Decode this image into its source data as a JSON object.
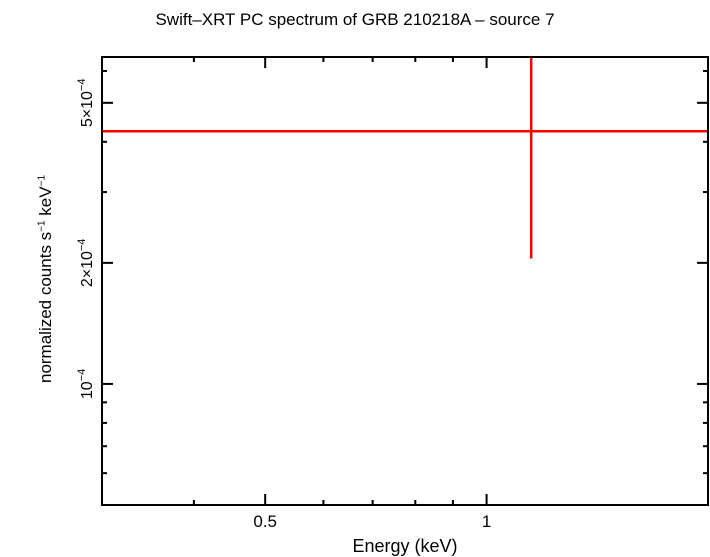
{
  "chart_data": {
    "type": "scatter",
    "title": "Swift–XRT PC spectrum of GRB 210218A – source 7",
    "xlabel": "Energy (keV)",
    "ylabel": {
      "prefix": "normalized counts s",
      "sup1": "−1",
      "middle": " keV",
      "sup2": "−1"
    },
    "x_scale": "log",
    "y_scale": "log",
    "xlim": [
      0.3,
      2.0
    ],
    "ylim": [
      5e-05,
      0.00065
    ],
    "x_ticks": [
      {
        "value": 0.5,
        "label": "0.5"
      },
      {
        "value": 1,
        "label": "1"
      }
    ],
    "x_minor_ticks": [
      0.4,
      0.6,
      0.7,
      0.8,
      0.9,
      2.0
    ],
    "y_ticks": [
      {
        "value": 0.0001,
        "mantissa": "10",
        "exponent": "−4"
      },
      {
        "value": 0.0002,
        "mantissa": "2×10",
        "exponent": "−4"
      },
      {
        "value": 0.0005,
        "mantissa": "5×10",
        "exponent": "−4"
      }
    ],
    "y_minor_ticks": [
      6e-05,
      7e-05,
      8e-05,
      9e-05,
      0.0003,
      0.0004,
      0.0006
    ],
    "series": [
      {
        "color": "#ff0000",
        "points": [
          {
            "x": 1.15,
            "y": 0.000425,
            "x_low": 0.3,
            "x_high": 2.0,
            "y_low": 0.000205,
            "y_high": 0.00065
          }
        ]
      }
    ],
    "grid": false,
    "legend": "none"
  }
}
